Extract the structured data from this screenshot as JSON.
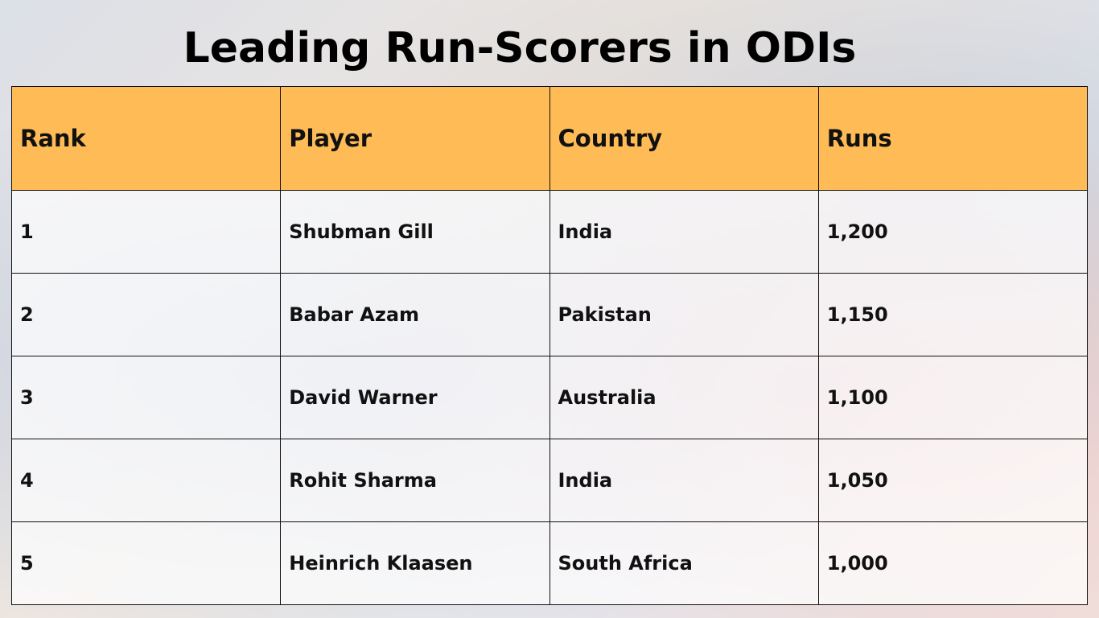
{
  "header": {
    "title": "Leading Run-Scorers in ODIs"
  },
  "table": {
    "columns": [
      "Rank",
      "Player",
      "Country",
      "Runs"
    ],
    "rows": [
      [
        "1",
        "Shubman Gill",
        "India",
        "1,200"
      ],
      [
        "2",
        "Babar Azam",
        "Pakistan",
        "1,150"
      ],
      [
        "3",
        "David Warner",
        "Australia",
        "1,100"
      ],
      [
        "4",
        "Rohit Sharma",
        "India",
        "1,050"
      ],
      [
        "5",
        "Heinrich Klaasen",
        "South Africa",
        "1,000"
      ]
    ]
  }
}
